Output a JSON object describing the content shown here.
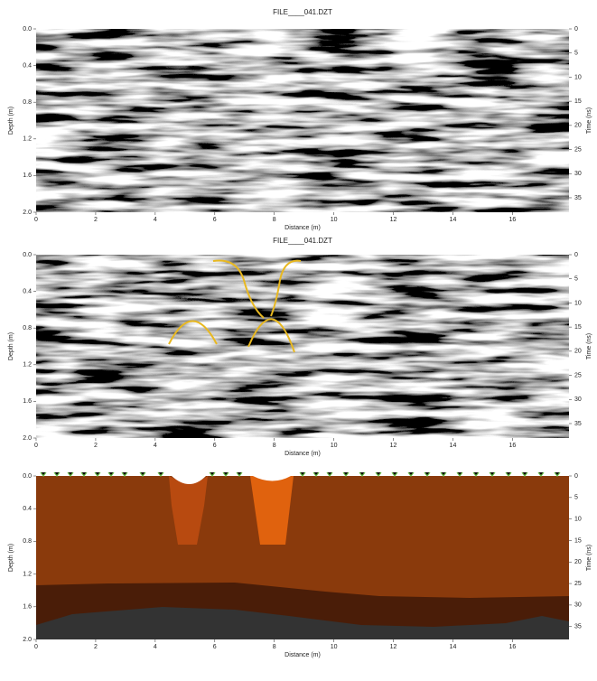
{
  "chart_data": [
    {
      "type": "radargram",
      "title": "FILE____041.DZT",
      "xlabel": "Distance (m)",
      "ylabel": "Depth (m)",
      "y2label": "Time (ns)",
      "xlim": [
        0,
        17.9
      ],
      "xticks": [
        0,
        2,
        4,
        6,
        8,
        10,
        12,
        14,
        16
      ],
      "ylim": [
        0,
        2
      ],
      "yticks": [
        {
          "value": 0,
          "label": "0.0"
        },
        0.4,
        0.8,
        1.2,
        1.6,
        {
          "value": 2,
          "label": "2.0"
        }
      ],
      "y2lim": [
        0,
        38
      ],
      "y2ticks": [
        0,
        5,
        10,
        15,
        20,
        25,
        30,
        35
      ]
    },
    {
      "type": "radargram",
      "title": "FILE____041.DZT",
      "xlabel": "Distance (m)",
      "ylabel": "Depth (m)",
      "y2label": "Time (ns)",
      "xlim": [
        0,
        17.9
      ],
      "xticks": [
        0,
        2,
        4,
        6,
        8,
        10,
        12,
        14,
        16
      ],
      "ylim": [
        0,
        2
      ],
      "yticks": [
        {
          "value": 0,
          "label": "0.0"
        },
        0.4,
        0.8,
        1.2,
        1.6,
        {
          "value": 2,
          "label": "2.0"
        }
      ],
      "y2lim": [
        0,
        38
      ],
      "y2ticks": [
        0,
        5,
        10,
        15,
        20,
        25,
        30,
        35
      ]
    },
    {
      "type": "section",
      "xlabel": "Distance (m)",
      "ylabel": "Depth (m)",
      "y2label": "Time (ns)",
      "xlim": [
        0,
        17.9
      ],
      "xticks": [
        0,
        2,
        4,
        6,
        8,
        10,
        12,
        14,
        16
      ],
      "ylim": [
        0,
        2
      ],
      "yticks": [
        {
          "value": 0,
          "label": "0.0"
        },
        0.4,
        0.8,
        1.2,
        1.6,
        {
          "value": 2,
          "label": "2.0"
        }
      ],
      "y2lim": [
        0,
        38
      ],
      "y2ticks": [
        0,
        5,
        10,
        15,
        20,
        25,
        30,
        35
      ]
    }
  ]
}
